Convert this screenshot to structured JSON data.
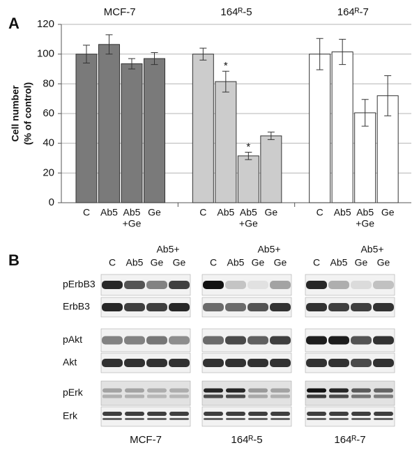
{
  "chart_data": {
    "type": "bar",
    "panel_label": "A",
    "ylabel": [
      "Cell number",
      "(% of control)"
    ],
    "categories": [
      "C",
      "Ab5",
      [
        "Ab5",
        "+Ge"
      ],
      "Ge"
    ],
    "groups": [
      {
        "name": "MCF-7",
        "color": "#7a7a7a",
        "values": [
          100,
          106.5,
          93.5,
          97
        ],
        "errors": [
          6,
          6.5,
          3.5,
          4
        ],
        "markers": [
          null,
          null,
          null,
          null
        ]
      },
      {
        "name": "164ᴿ-5",
        "color": "#cccccc",
        "values": [
          100,
          81.5,
          31.5,
          45
        ],
        "errors": [
          4,
          7,
          2.5,
          2.5
        ],
        "markers": [
          null,
          "*",
          "*",
          null
        ]
      },
      {
        "name": "164ᴿ-7",
        "color": "#ffffff",
        "values": [
          100,
          101.5,
          60.5,
          72
        ],
        "errors": [
          10.5,
          8.5,
          9,
          13.5
        ],
        "markers": [
          null,
          null,
          null,
          null
        ]
      }
    ],
    "ylim": [
      0,
      120
    ],
    "yticks": [
      0,
      20,
      40,
      60,
      80,
      100,
      120
    ],
    "grid": true
  },
  "panel_b": {
    "label": "B",
    "lane_prefix": "Ab5+",
    "lanes": [
      "C",
      "Ab5",
      "Ge",
      "Ge"
    ],
    "rows": [
      "pErbB3",
      "ErbB3",
      "pAkt",
      "Akt",
      "pErk",
      "Erk"
    ],
    "groups": [
      "MCF-7",
      "164ᴿ-5",
      "164ᴿ-7"
    ]
  }
}
